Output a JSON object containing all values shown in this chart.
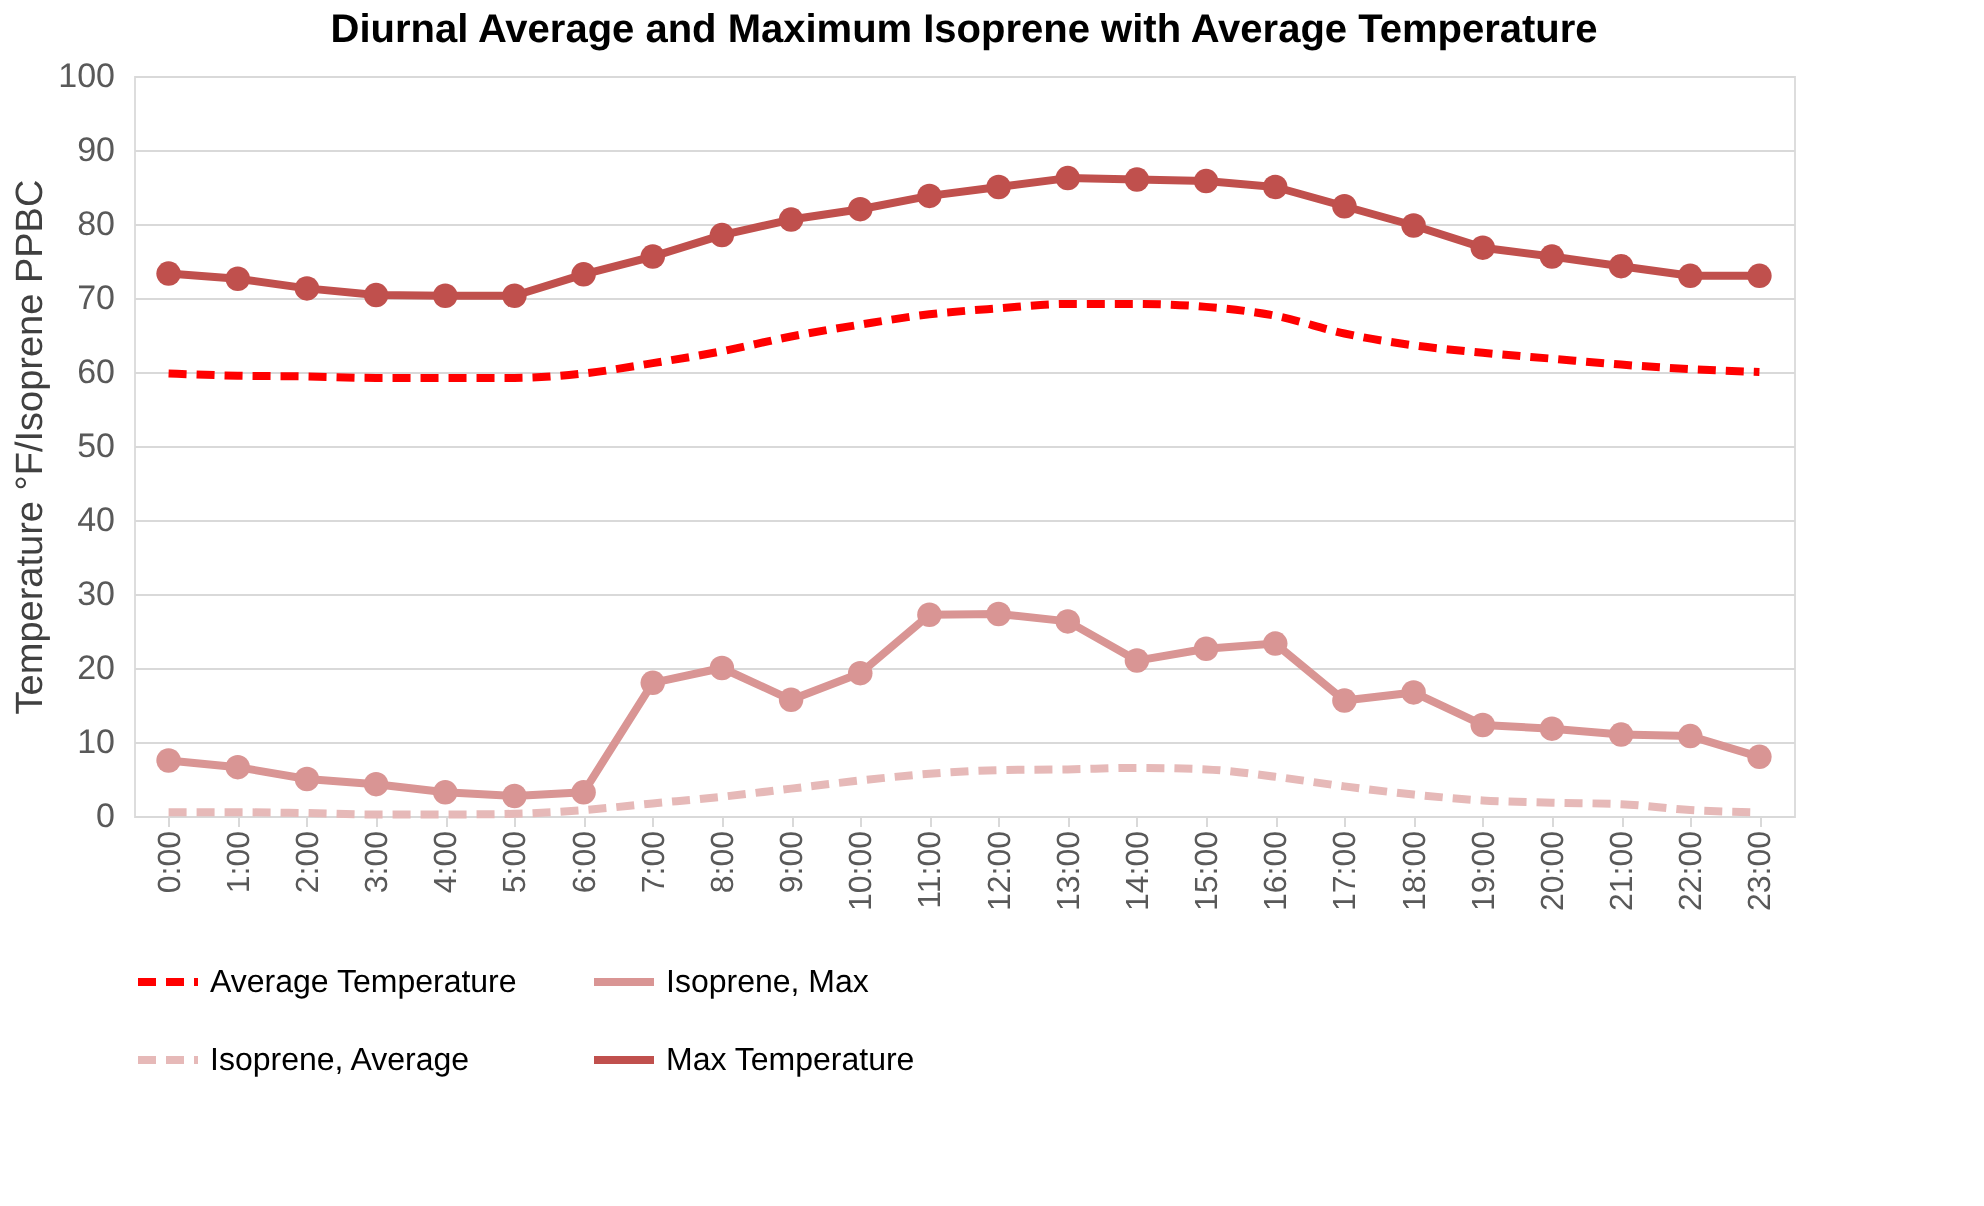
{
  "chart_data": {
    "type": "line",
    "title": "Diurnal Average and Maximum Isoprene with Average Temperature",
    "ylabel": "Temperature °F/Isoprene PPBC",
    "categories": [
      "0:00",
      "1:00",
      "2:00",
      "3:00",
      "4:00",
      "5:00",
      "6:00",
      "7:00",
      "8:00",
      "9:00",
      "10:00",
      "11:00",
      "12:00",
      "13:00",
      "14:00",
      "15:00",
      "16:00",
      "17:00",
      "18:00",
      "19:00",
      "20:00",
      "21:00",
      "22:00",
      "23:00"
    ],
    "ylim": [
      0,
      100
    ],
    "yticks": [
      0,
      10,
      20,
      30,
      40,
      50,
      60,
      70,
      80,
      90,
      100
    ],
    "grid": "y",
    "legend": "bottom",
    "series": [
      {
        "name": "Average Temperature",
        "color": "#ff0000",
        "line_style": "dashed",
        "marker": "none",
        "values": [
          59.8,
          59.5,
          59.4,
          59.2,
          59.2,
          59.2,
          59.8,
          61.2,
          62.8,
          64.8,
          66.4,
          67.8,
          68.6,
          69.2,
          69.2,
          68.8,
          67.6,
          65.2,
          63.6,
          62.6,
          61.8,
          61.0,
          60.4,
          60.0
        ]
      },
      {
        "name": "Isoprene, Max",
        "color": "#d99594",
        "line_style": "solid",
        "marker": "circle",
        "values": [
          7.5,
          6.6,
          5.0,
          4.3,
          3.2,
          2.7,
          3.2,
          18.0,
          20.0,
          15.7,
          19.3,
          27.2,
          27.3,
          26.3,
          21.0,
          22.6,
          23.3,
          15.6,
          16.7,
          12.3,
          11.8,
          11.0,
          10.8,
          8.0
        ]
      },
      {
        "name": "Isoprene, Average",
        "color": "#e6b9b8",
        "line_style": "dashed",
        "marker": "none",
        "values": [
          0.5,
          0.5,
          0.4,
          0.2,
          0.2,
          0.3,
          0.8,
          1.7,
          2.6,
          3.7,
          4.8,
          5.7,
          6.2,
          6.3,
          6.5,
          6.3,
          5.3,
          4.0,
          2.9,
          2.1,
          1.8,
          1.6,
          0.8,
          0.5
        ]
      },
      {
        "name": "Max Temperature",
        "color": "#c0504d",
        "line_style": "solid",
        "marker": "circle",
        "values": [
          73.3,
          72.6,
          71.3,
          70.4,
          70.3,
          70.3,
          73.2,
          75.6,
          78.5,
          80.6,
          82.0,
          83.8,
          85.0,
          86.2,
          86.0,
          85.8,
          85.0,
          82.4,
          79.8,
          76.8,
          75.6,
          74.3,
          73.0,
          73.0
        ]
      }
    ]
  }
}
